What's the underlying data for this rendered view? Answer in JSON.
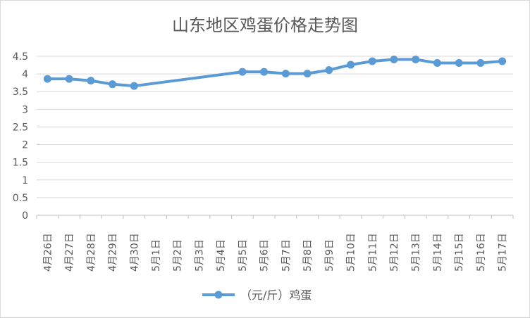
{
  "chart_data": {
    "type": "line",
    "title": "山东地区鸡蛋价格走势图",
    "categories": [
      "4月26日",
      "4月27日",
      "4月28日",
      "4月29日",
      "4月30日",
      "5月1日",
      "5月2日",
      "5月3日",
      "5月4日",
      "5月5日",
      "5月6日",
      "5月7日",
      "5月8日",
      "5月9日",
      "5月10日",
      "5月11日",
      "5月12日",
      "5月13日",
      "5月14日",
      "5月15日",
      "5月16日",
      "5月17日"
    ],
    "series": [
      {
        "name": "（元/斤）鸡蛋",
        "color": "#5b9bd5",
        "values": [
          3.86,
          3.86,
          3.81,
          3.71,
          3.66,
          null,
          null,
          null,
          null,
          4.06,
          4.06,
          4.01,
          4.01,
          4.11,
          4.26,
          4.36,
          4.41,
          4.41,
          4.31,
          4.31,
          4.31,
          4.36
        ]
      }
    ],
    "ylim": [
      0,
      4.5
    ],
    "yticks": [
      "0",
      "0.5",
      "1",
      "1.5",
      "2",
      "2.5",
      "3",
      "3.5",
      "4",
      "4.5"
    ],
    "grid": true,
    "legend": "bottom",
    "gaps": "connected"
  }
}
